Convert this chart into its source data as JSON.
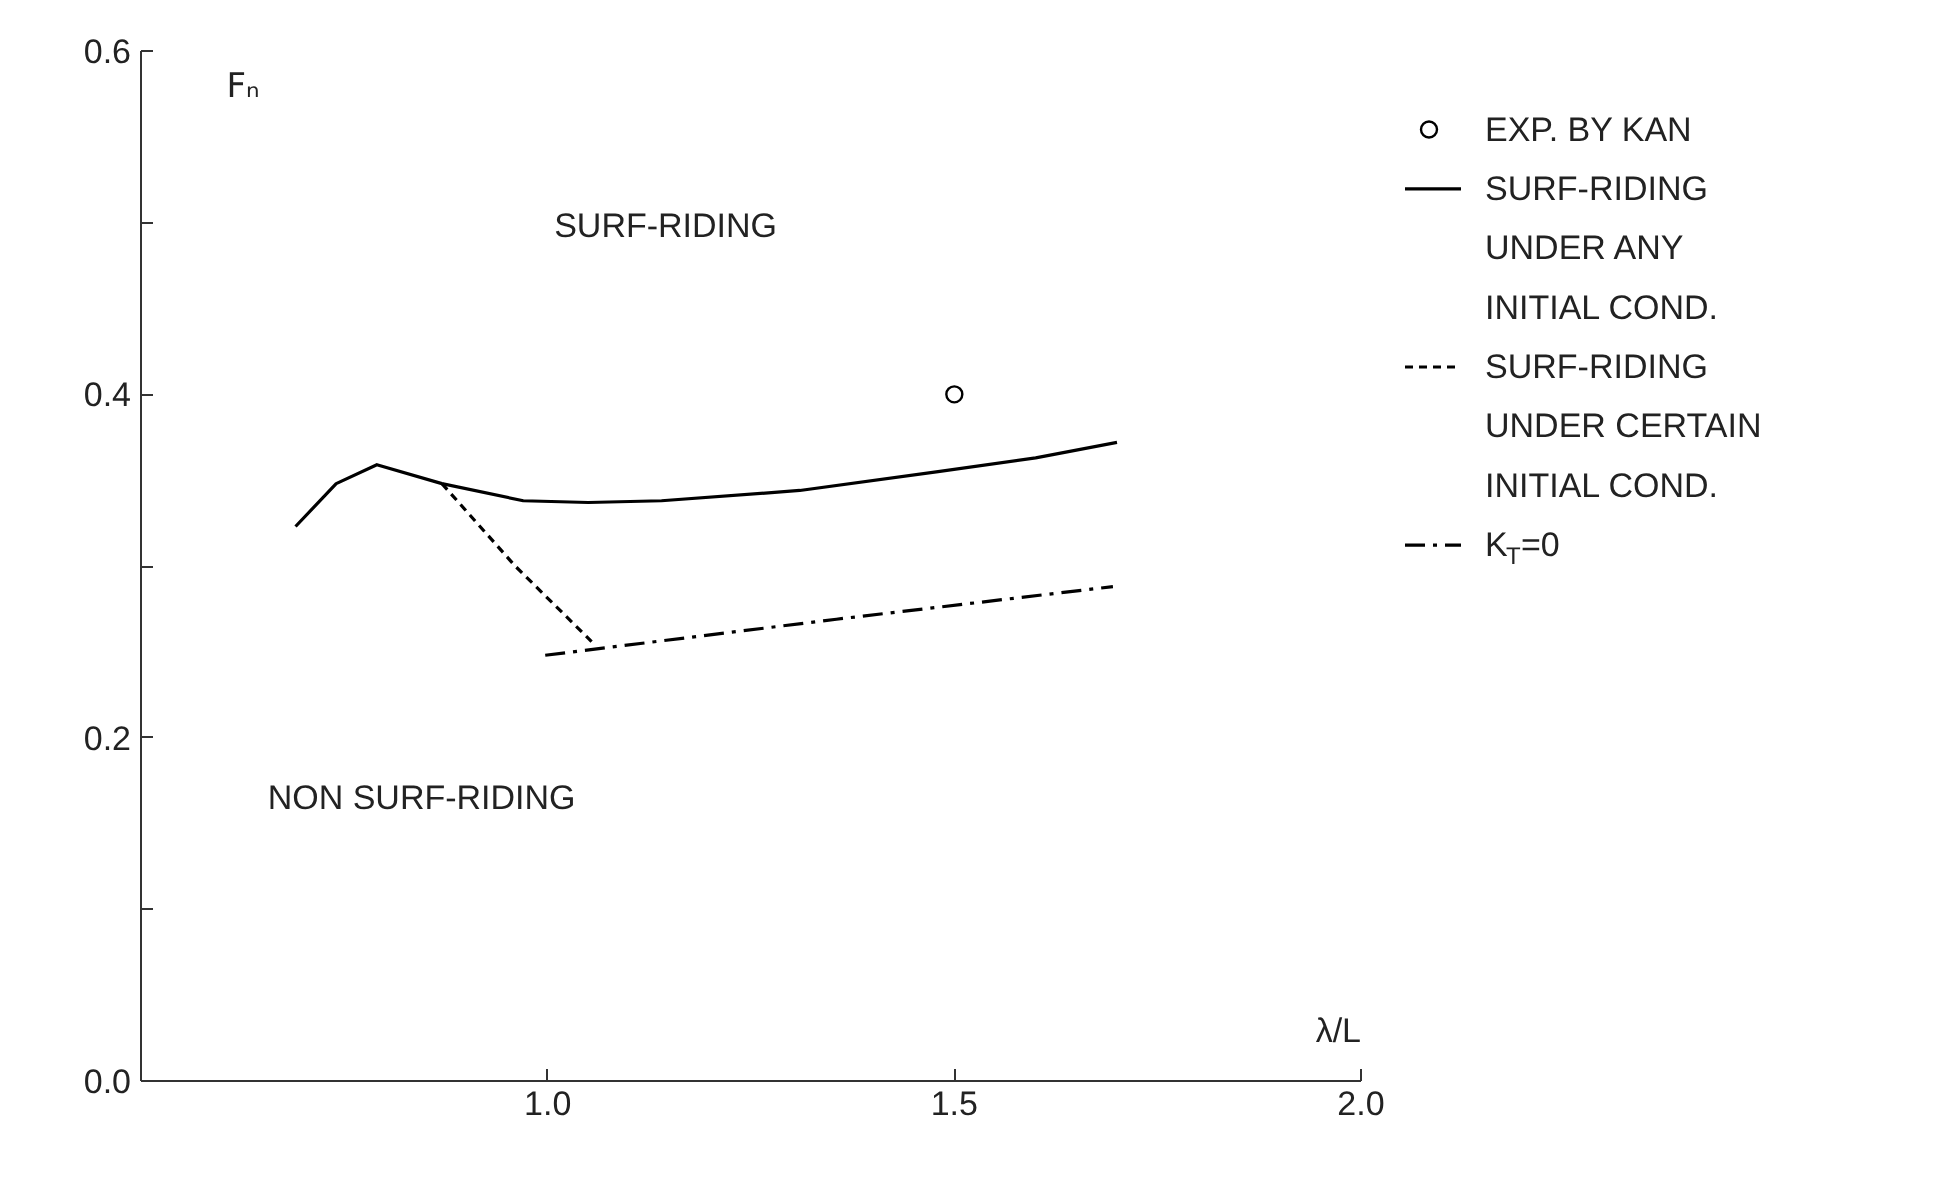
{
  "chart_data": {
    "type": "line",
    "xlabel": "λ/L",
    "ylabel": "Fₙ",
    "xlim": [
      0.5,
      2.0
    ],
    "ylim": [
      0.0,
      0.6
    ],
    "xticks": [
      {
        "value": 1.0,
        "label": "1.0"
      },
      {
        "value": 1.5,
        "label": "1.5"
      },
      {
        "value": 2.0,
        "label": "2.0"
      }
    ],
    "yticks": [
      {
        "value": 0.0,
        "label": "0.0"
      },
      {
        "value": 0.1,
        "label": null
      },
      {
        "value": 0.2,
        "label": "0.2"
      },
      {
        "value": 0.3,
        "label": null
      },
      {
        "value": 0.4,
        "label": "0.4"
      },
      {
        "value": 0.5,
        "label": null
      },
      {
        "value": 0.6,
        "label": "0.6"
      }
    ],
    "series": [
      {
        "name": "EXP. BY KAN",
        "type": "scatter",
        "marker": "circle",
        "color": "#000000",
        "x": [
          1.5
        ],
        "values": [
          0.4
        ]
      },
      {
        "name": "SURF-RIDING\nUNDER ANY\nINITIAL COND.",
        "line_style": "solid",
        "color": "#000000",
        "x": [
          0.69,
          0.74,
          0.79,
          0.87,
          0.97,
          1.05,
          1.14,
          1.31,
          1.48,
          1.6,
          1.7
        ],
        "values": [
          0.323,
          0.348,
          0.359,
          0.348,
          0.338,
          0.337,
          0.338,
          0.344,
          0.355,
          0.363,
          0.372
        ]
      },
      {
        "name": "SURF-RIDING\nUNDER CERTAIN\nINITIAL COND.",
        "line_style": "dashed",
        "color": "#000000",
        "x": [
          0.87,
          0.96,
          1.054
        ],
        "values": [
          0.348,
          0.3,
          0.256
        ]
      },
      {
        "name": "K$_{T}$=0",
        "line_style": "dashdot",
        "color": "#000000",
        "x": [
          0.997,
          1.355,
          1.695
        ],
        "values": [
          0.248,
          0.269,
          0.288
        ]
      }
    ],
    "annotations": [
      "SURF-RIDING",
      "NON SURF-RIDING"
    ],
    "legend": "right",
    "grid": false
  }
}
